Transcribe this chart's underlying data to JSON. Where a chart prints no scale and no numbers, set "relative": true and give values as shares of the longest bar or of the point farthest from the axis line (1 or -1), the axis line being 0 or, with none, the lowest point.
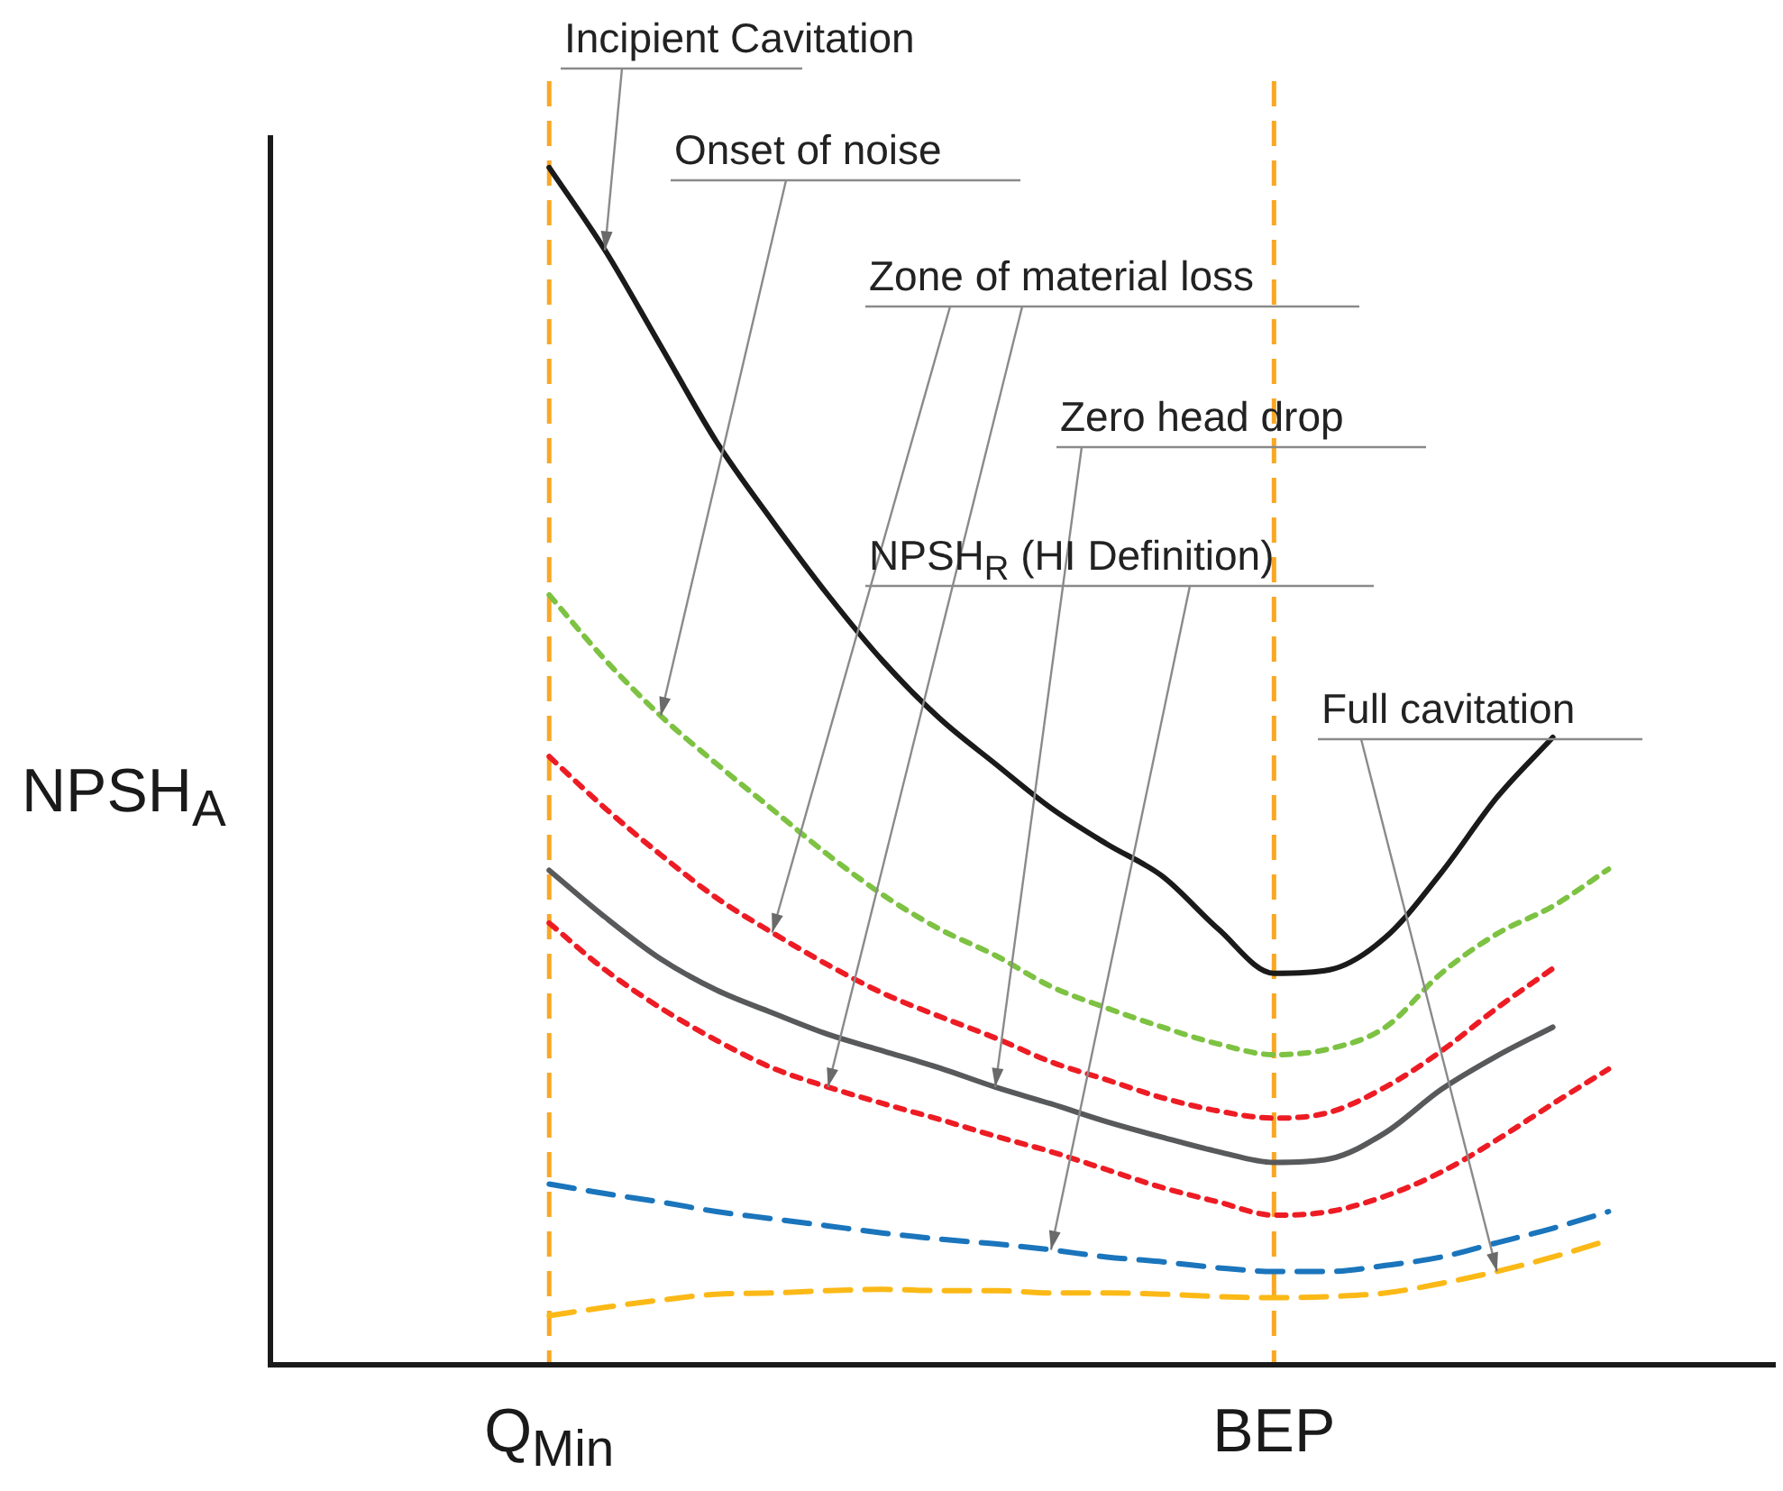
{
  "chart_data": {
    "type": "line",
    "relative": true,
    "ylabel": "NPSH$_{A}$",
    "categories": [
      null,
      null,
      null,
      null,
      null,
      "Q$_{Min}$",
      null,
      null,
      null,
      null,
      null,
      null,
      null,
      null,
      null,
      null,
      null,
      null,
      "BEP",
      null,
      null,
      null,
      null,
      null,
      null,
      null,
      null,
      null
    ],
    "line_style": "solid",
    "series": [
      {
        "color": "#1a1a1a",
        "values": [
          null,
          null,
          null,
          null,
          null,
          1.0,
          0.931,
          0.851,
          0.771,
          0.705,
          0.643,
          0.587,
          0.54,
          0.502,
          0.465,
          0.435,
          0.408,
          0.364,
          0.327,
          0.33,
          0.357,
          0.411,
          0.474,
          0.524,
          null,
          null,
          null,
          null
        ]
      },
      {
        "color": "#7dc242",
        "line_style": "dotted",
        "values": [
          null,
          null,
          null,
          null,
          null,
          0.643,
          0.589,
          0.542,
          0.502,
          0.464,
          0.426,
          0.392,
          0.364,
          0.342,
          0.316,
          0.298,
          0.282,
          0.268,
          0.259,
          0.264,
          0.282,
          0.327,
          0.36,
          0.383,
          0.414,
          null,
          null,
          null
        ]
      },
      {
        "color": "#ed1c24",
        "line_style": "dotted",
        "values": [
          null,
          null,
          null,
          null,
          null,
          0.508,
          0.465,
          0.426,
          0.39,
          0.361,
          0.334,
          0.31,
          0.291,
          0.273,
          0.253,
          0.238,
          0.223,
          0.212,
          0.206,
          0.211,
          0.232,
          0.262,
          0.298,
          0.331,
          null,
          null,
          null,
          null
        ]
      },
      {
        "color": "#58595b",
        "values": [
          null,
          null,
          null,
          null,
          null,
          0.413,
          0.374,
          0.339,
          0.313,
          0.294,
          0.276,
          0.262,
          0.248,
          0.232,
          0.218,
          0.203,
          0.19,
          0.178,
          0.169,
          0.172,
          0.194,
          0.23,
          0.258,
          0.282,
          null,
          null,
          null,
          null
        ]
      },
      {
        "color": "#ed1c24",
        "line_style": "dotted",
        "values": [
          null,
          null,
          null,
          null,
          null,
          0.369,
          0.33,
          0.298,
          0.271,
          0.248,
          0.232,
          0.218,
          0.205,
          0.191,
          0.178,
          0.163,
          0.148,
          0.136,
          0.125,
          0.128,
          0.141,
          0.161,
          0.188,
          0.218,
          0.247,
          null,
          null,
          null
        ]
      },
      {
        "color": "#1a75bc",
        "line_style": "dashed",
        "values": [
          null,
          null,
          null,
          null,
          null,
          0.151,
          0.143,
          0.136,
          0.128,
          0.122,
          0.116,
          0.11,
          0.105,
          0.101,
          0.096,
          0.09,
          0.086,
          0.081,
          0.078,
          0.078,
          0.083,
          0.09,
          0.102,
          0.114,
          0.128,
          null,
          null,
          null
        ]
      },
      {
        "color": "#fbb917",
        "line_style": "dashed",
        "values": [
          null,
          null,
          null,
          null,
          null,
          0.041,
          0.048,
          0.054,
          0.059,
          0.06,
          0.062,
          0.063,
          0.062,
          0.062,
          0.06,
          0.06,
          0.059,
          0.057,
          0.056,
          0.057,
          0.06,
          0.068,
          0.078,
          0.09,
          0.104,
          null,
          null,
          null
        ]
      }
    ],
    "ref_lines": [
      {
        "axis": "x",
        "value": "Q$_{Min}$",
        "color": "#f9a825",
        "line_style": "dashed"
      },
      {
        "axis": "x",
        "value": "BEP",
        "color": "#f9a825",
        "line_style": "dashed"
      }
    ],
    "annotations": [
      "Incipient Cavitation",
      "Onset of noise",
      "Zone of material loss",
      "Zero head drop",
      "NPSH$_{R}$ (HI Definition)",
      "Full cavitation"
    ]
  }
}
